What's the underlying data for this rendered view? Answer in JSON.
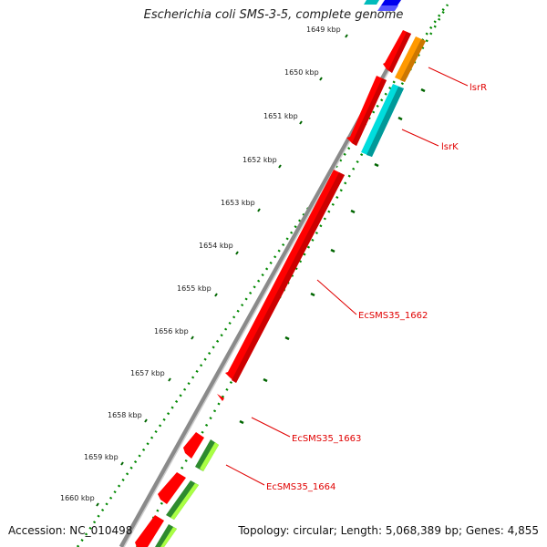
{
  "title": "Escherichia coli SMS-3-5, complete genome",
  "footer": {
    "accession": "Accession: NC_010498",
    "summary": "Topology: circular; Length: 5,068,389 bp; Genes: 4,855"
  },
  "ticks": [
    "1649 kbp",
    "1650 kbp",
    "1651 kbp",
    "1652 kbp",
    "1653 kbp",
    "1654 kbp",
    "1655 kbp",
    "1656 kbp",
    "1657 kbp",
    "1658 kbp",
    "1659 kbp",
    "1660 kbp"
  ],
  "gene_labels": [
    "lsrR",
    "lsrK",
    "EcSMS35_1662",
    "EcSMS35_1663",
    "EcSMS35_1664"
  ],
  "colors": {
    "backbone": "#888888",
    "forward_cds": "#ff0000",
    "orange": "#ff9900",
    "cyan": "#00cccc",
    "blue": "#0000ff",
    "green": "#228b22",
    "lime": "#99ee33",
    "dots": "#008800",
    "label": "#e00000"
  }
}
